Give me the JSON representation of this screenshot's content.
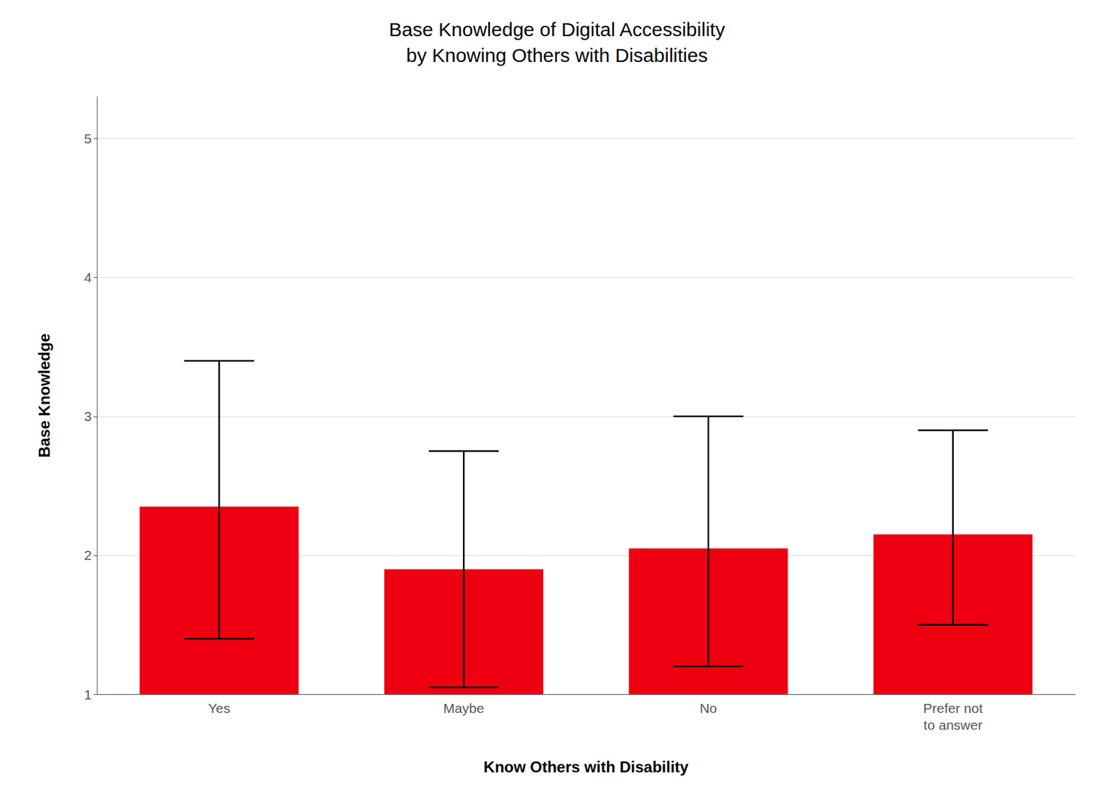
{
  "chart_data": {
    "type": "bar",
    "title": "Base Knowledge of Digital Accessibility\nby Knowing Others with Disabilities",
    "xlabel": "Know Others with Disability",
    "ylabel": "Base Knowledge",
    "categories": [
      "Yes",
      "Maybe",
      "No",
      "Prefer not\nto answer"
    ],
    "values": [
      2.35,
      1.9,
      2.05,
      2.15
    ],
    "ci_lower": [
      1.4,
      1.05,
      1.2,
      1.5
    ],
    "ci_upper": [
      3.4,
      2.75,
      3.0,
      2.9
    ],
    "bar_bottom": 1.0,
    "color": "#ee0011",
    "ylim": [
      1.0,
      5.3
    ],
    "yticks": [
      1,
      2,
      3,
      4,
      5
    ],
    "grid": true
  }
}
